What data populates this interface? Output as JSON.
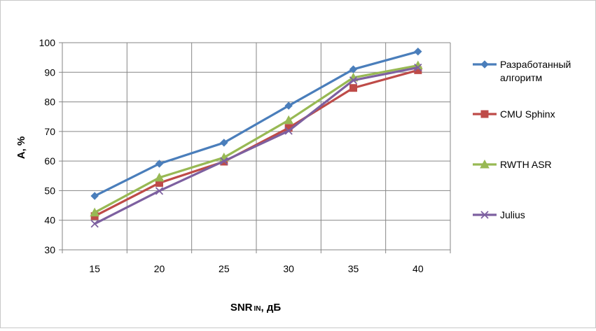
{
  "chart_data": {
    "type": "line",
    "title": "",
    "xlabel": "SNR IN, дБ",
    "xlabel_main": "SNR",
    "xlabel_sub": "IN",
    "xlabel_unit": ", дБ",
    "ylabel": "A, %",
    "ylim": [
      30,
      100
    ],
    "yticks": [
      30,
      40,
      50,
      60,
      70,
      80,
      90,
      100
    ],
    "categories": [
      "15",
      "20",
      "25",
      "30",
      "35",
      "40"
    ],
    "grid": true,
    "legend": "right",
    "series": [
      {
        "name": "Разработанный алгоритм",
        "name_lines": [
          "Разработанный",
          "алгоритм"
        ],
        "color": "#4a7ebb",
        "marker": "diamond",
        "values": [
          48.2,
          59.1,
          66.2,
          78.7,
          91.0,
          97.0
        ]
      },
      {
        "name": "CMU Sphinx",
        "name_lines": [
          "CMU Sphinx"
        ],
        "color": "#be4b48",
        "marker": "square",
        "values": [
          41.4,
          52.6,
          59.8,
          71.2,
          84.7,
          90.7
        ]
      },
      {
        "name": "RWTH ASR",
        "name_lines": [
          "RWTH ASR"
        ],
        "color": "#98b954",
        "marker": "triangle",
        "values": [
          42.6,
          54.4,
          61.2,
          73.8,
          88.2,
          92.3
        ]
      },
      {
        "name": "Julius",
        "name_lines": [
          "Julius"
        ],
        "color": "#7d60a0",
        "marker": "x",
        "values": [
          38.8,
          49.9,
          60.0,
          70.2,
          87.3,
          91.6
        ]
      }
    ]
  }
}
